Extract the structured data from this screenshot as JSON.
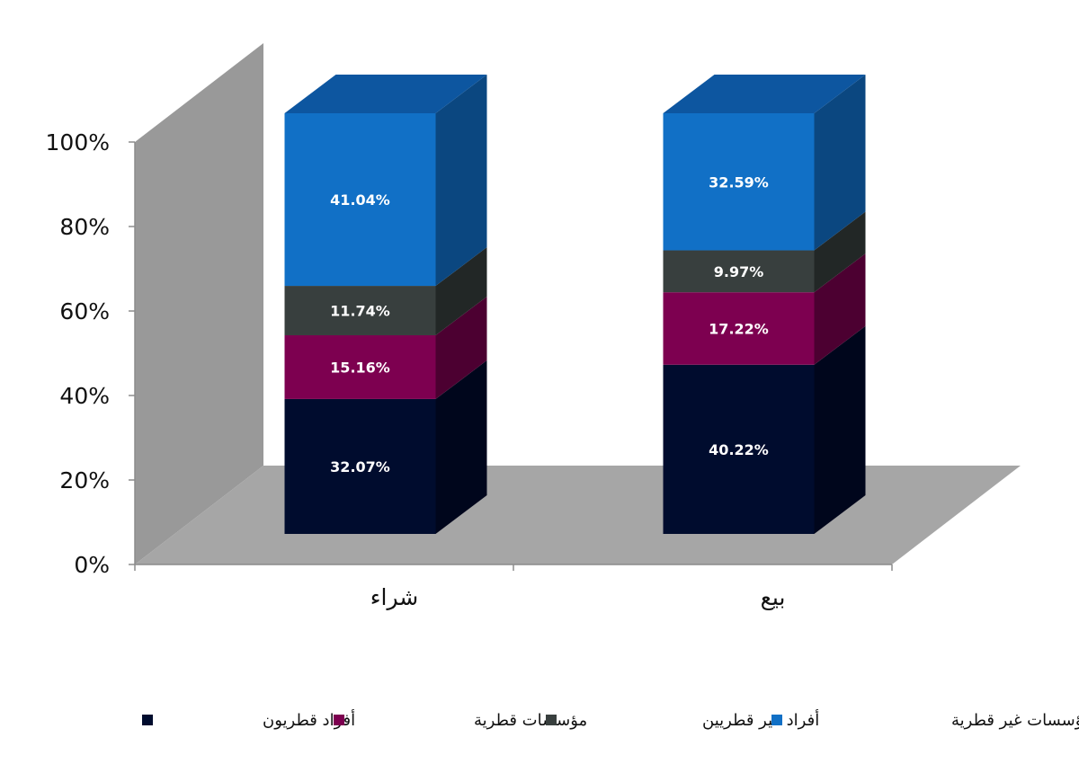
{
  "chart_data": {
    "type": "bar",
    "stacked": true,
    "normalized_percent": true,
    "three_d": true,
    "categories": [
      "شراء",
      "بيع"
    ],
    "series": [
      {
        "name": "أفراد قطريون",
        "values": [
          32.07,
          40.22
        ],
        "labels": [
          "32.07%",
          "40.22%"
        ],
        "color": "#000c2e",
        "side_color": "#00061c",
        "top_color": "#000a24"
      },
      {
        "name": "مؤسسات قطرية",
        "values": [
          15.16,
          17.22
        ],
        "labels": [
          "15.16%",
          "17.22%"
        ],
        "color": "#7d0050",
        "side_color": "#4c0031",
        "top_color": "#5e003c"
      },
      {
        "name": "أفراد غير قطريين",
        "values": [
          11.74,
          9.97
        ],
        "labels": [
          "11.74%",
          "9.97%"
        ],
        "color": "#383f3e",
        "side_color": "#222726",
        "top_color": "#2c3231"
      },
      {
        "name": "مؤسسات غير قطرية",
        "values": [
          41.04,
          32.59
        ],
        "labels": [
          "41.04%",
          "32.59%"
        ],
        "color": "#1170c6",
        "side_color": "#0b4780",
        "top_color": "#0d56a0"
      }
    ],
    "y_ticks": [
      "0%",
      "20%",
      "40%",
      "60%",
      "80%",
      "100%"
    ],
    "ylim": [
      0,
      100
    ],
    "grid": false,
    "legend_position": "bottom",
    "wall_color": "#999999",
    "floor_color": "#a6a6a6"
  }
}
